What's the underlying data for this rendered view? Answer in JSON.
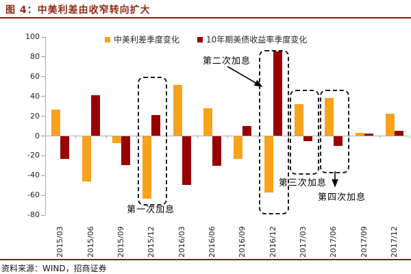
{
  "title": "图 4：中美利差由收窄转向扩大",
  "source": "资料来源：WIND，招商证券",
  "colors": {
    "title_text": "#8F2B14",
    "divider_rule": "#8B1A0A",
    "spread_bar": "#F9A21B",
    "treasury_bar": "#990000",
    "axis_gray": "#ABABAB"
  },
  "chart_data": {
    "type": "bar",
    "title": "图 4：中美利差由收窄转向扩大",
    "categories": [
      "2015/03",
      "2015/06",
      "2015/09",
      "2015/12",
      "2016/03",
      "2016/06",
      "2016/09",
      "2016/12",
      "2017/03",
      "2017/06",
      "2017/09",
      "2017/12"
    ],
    "series": [
      {
        "name": "中美利差季度变化",
        "color": "#F9A21B",
        "values": [
          26,
          -46,
          -7,
          -63,
          51,
          28,
          -23,
          -57,
          32,
          38,
          3,
          22
        ]
      },
      {
        "name": "10年期美债收益率季度变化",
        "color": "#990000",
        "values": [
          -23,
          41,
          -29,
          21,
          -49,
          -30,
          10,
          85,
          -5,
          -10,
          2,
          5
        ]
      }
    ],
    "xlabel": "",
    "ylabel": "",
    "ylim": [
      -80,
      100
    ],
    "ytick_step": 20,
    "grid": false,
    "legend_position": "top-center",
    "annotations": [
      {
        "label": "第一次加息",
        "target_category": "2015/12",
        "type": "dashed-box"
      },
      {
        "label": "第二次加息",
        "target_category": "2016/12",
        "type": "dashed-box-with-arrow"
      },
      {
        "label": "第三次加息",
        "target_category": "2017/03",
        "type": "dashed-box"
      },
      {
        "label": "第四次加息",
        "target_category": "2017/06",
        "type": "dashed-box-with-arrow"
      }
    ]
  }
}
